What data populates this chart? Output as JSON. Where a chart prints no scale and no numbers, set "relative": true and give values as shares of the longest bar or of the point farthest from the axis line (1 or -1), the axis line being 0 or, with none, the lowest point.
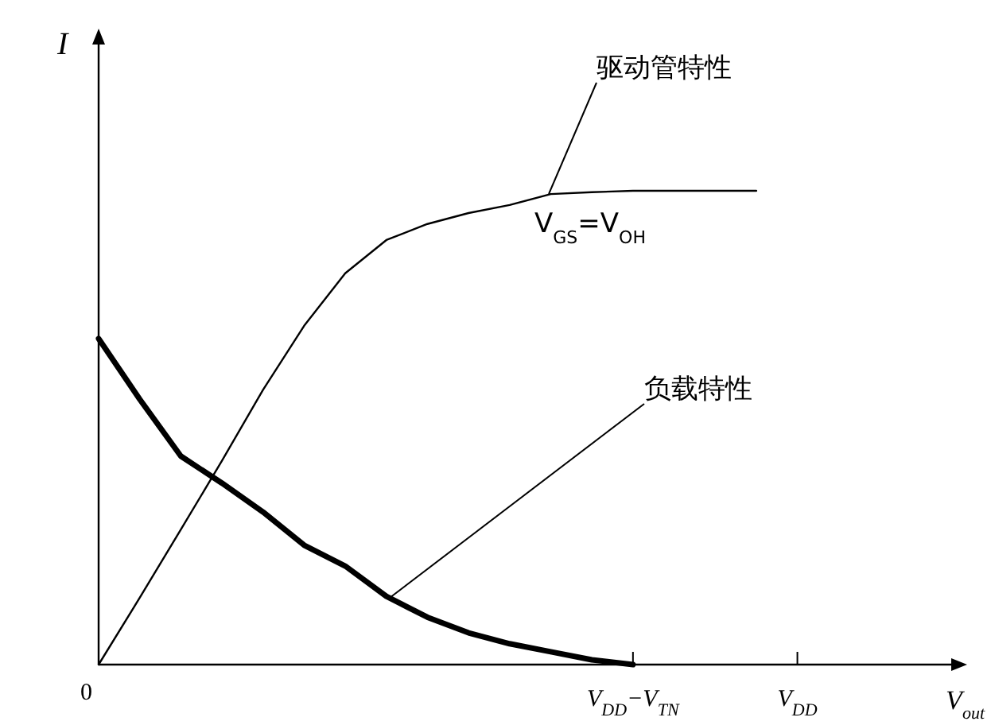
{
  "chart_data": {
    "type": "line",
    "relative": true,
    "ylabel": "I",
    "xlabel": "V$_{out}$",
    "categories": [
      "0",
      null,
      null,
      null,
      null,
      null,
      null,
      null,
      null,
      null,
      null,
      null,
      null,
      "V$_{DD}$−V$_{TN}$",
      null,
      null,
      null,
      "V$_{DD}$",
      null,
      null,
      null,
      null
    ],
    "series": [
      {
        "color": "#000000",
        "values": [
          0,
          0.141,
          0.285,
          0.43,
          0.58,
          0.715,
          0.826,
          0.896,
          0.93,
          0.953,
          0.97,
          0.993,
          0.997,
          1,
          1,
          1,
          1,
          null,
          null,
          null,
          null,
          null
        ]
      },
      {
        "color": "#000000",
        "values": [
          0.688,
          0.56,
          0.44,
          0.383,
          0.322,
          0.252,
          0.208,
          0.144,
          0.1,
          0.067,
          0.044,
          0.027,
          0.01,
          0,
          null,
          null,
          null,
          null,
          null,
          null,
          null,
          null
        ]
      }
    ],
    "annotations": [
      "驱动管特性",
      "V$_{GS}$=V$_{OH}$",
      "负载特性"
    ]
  }
}
